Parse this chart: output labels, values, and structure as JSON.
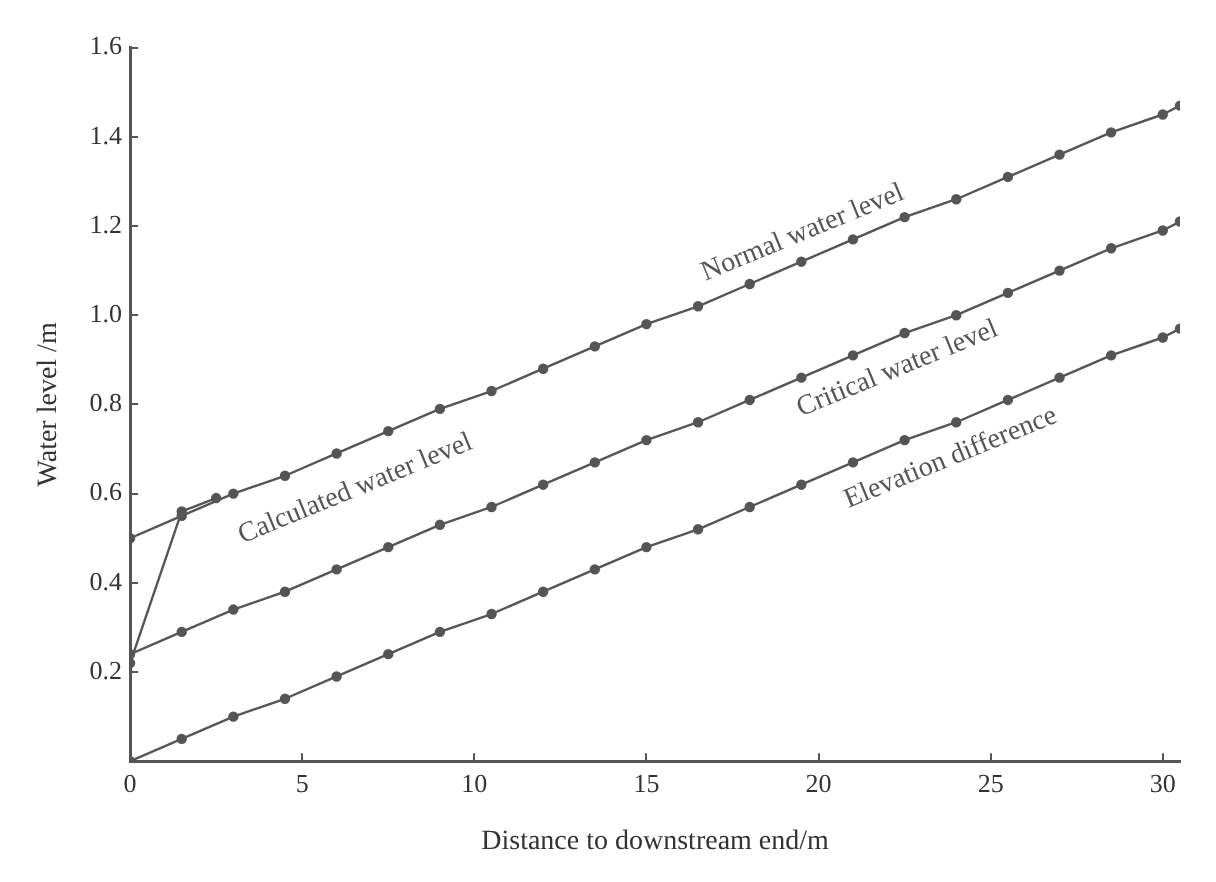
{
  "chart_data": {
    "type": "line",
    "xlabel": "Distance to downstream end/m",
    "ylabel": "Water level /m",
    "x": [
      0,
      1.5,
      3,
      4.5,
      6,
      7.5,
      9,
      10.5,
      12,
      13.5,
      15,
      16.5,
      18,
      19.5,
      21,
      22.5,
      24,
      25.5,
      27,
      28.5,
      30,
      30.5
    ],
    "series": [
      {
        "name": "Normal water level",
        "color": "#555555",
        "values": [
          0.5,
          0.55,
          0.6,
          0.64,
          0.69,
          0.74,
          0.79,
          0.83,
          0.88,
          0.93,
          0.98,
          1.02,
          1.07,
          1.12,
          1.17,
          1.22,
          1.26,
          1.31,
          1.36,
          1.41,
          1.45,
          1.47
        ]
      },
      {
        "name": "Critical water level",
        "color": "#555555",
        "values": [
          0.24,
          0.29,
          0.34,
          0.38,
          0.43,
          0.48,
          0.53,
          0.57,
          0.62,
          0.67,
          0.72,
          0.76,
          0.81,
          0.86,
          0.91,
          0.96,
          1.0,
          1.05,
          1.1,
          1.15,
          1.19,
          1.21
        ]
      },
      {
        "name": "Elevation difference",
        "color": "#555555",
        "values": [
          0,
          0.05,
          0.1,
          0.14,
          0.19,
          0.24,
          0.29,
          0.33,
          0.38,
          0.43,
          0.48,
          0.52,
          0.57,
          0.62,
          0.67,
          0.72,
          0.76,
          0.81,
          0.86,
          0.91,
          0.95,
          0.97
        ]
      },
      {
        "name": "Calculated water level",
        "color": "#555555",
        "x": [
          0,
          1.5,
          2.5
        ],
        "values": [
          0.22,
          0.56,
          0.59
        ]
      }
    ],
    "xlim": [
      0,
      30.5
    ],
    "xticks": [
      0,
      5,
      10,
      15,
      20,
      25,
      30
    ],
    "ylim": [
      0,
      1.6
    ],
    "yticks": [
      {
        "value": 0,
        "label": null
      },
      0.2,
      0.4,
      0.6,
      0.8,
      {
        "value": 1,
        "label": "1.0"
      },
      1.2,
      1.4,
      1.6
    ],
    "grid": false,
    "legend": false,
    "marker": "circle",
    "line_style": "solid"
  }
}
